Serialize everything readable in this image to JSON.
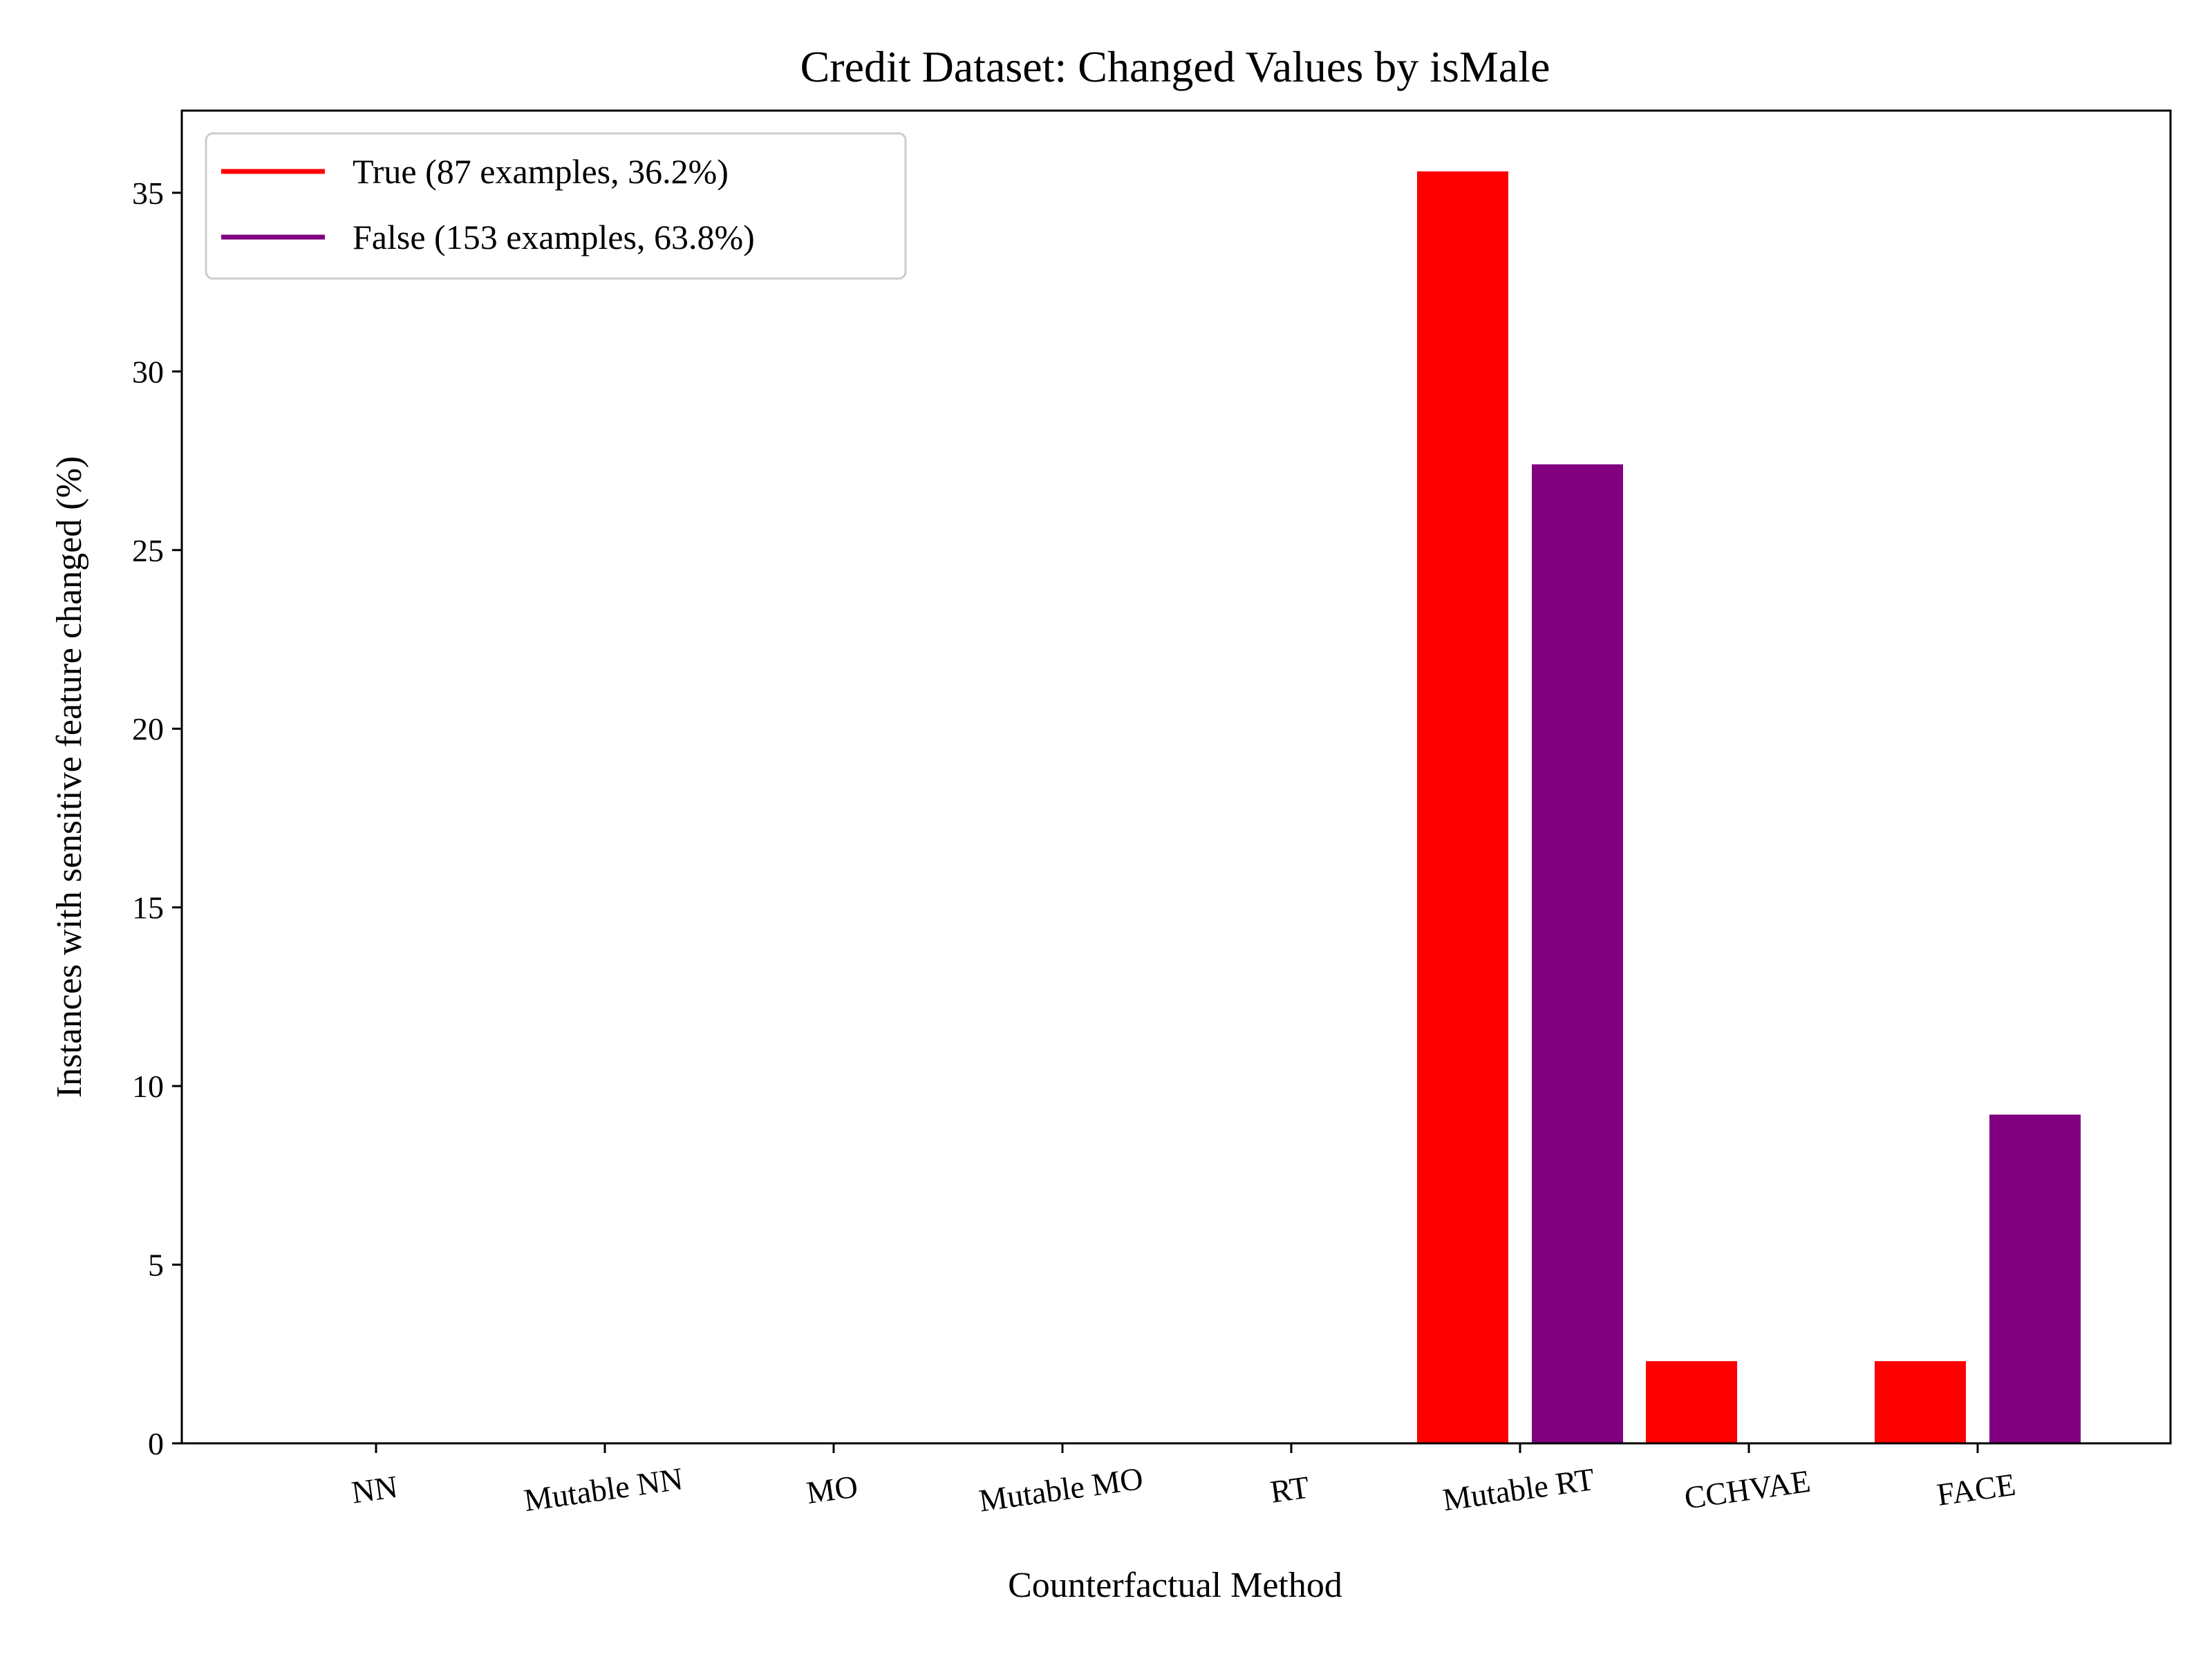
{
  "chart_data": {
    "type": "bar",
    "title": "Credit Dataset: Changed Values by isMale",
    "xlabel": "Counterfactual Method",
    "ylabel": "Instances with sensitive feature changed (%)",
    "categories": [
      "NN",
      "Mutable NN",
      "MO",
      "Mutable MO",
      "RT",
      "Mutable RT",
      "CCHVAE",
      "FACE"
    ],
    "series": [
      {
        "name": "True (87 examples, 36.2%)",
        "color": "#ff0000",
        "values": [
          0,
          0,
          0,
          0,
          0,
          35.6,
          2.3,
          2.3
        ]
      },
      {
        "name": "False (153 examples, 63.8%)",
        "color": "#800080",
        "values": [
          0,
          0,
          0,
          0,
          0,
          27.4,
          0,
          9.2
        ]
      }
    ],
    "ylim": [
      0,
      37.3
    ],
    "yticks": [
      0,
      5,
      10,
      15,
      20,
      25,
      30,
      35
    ],
    "xtick_rotation_deg": 8,
    "grid": false,
    "legend_position": "top-left"
  }
}
